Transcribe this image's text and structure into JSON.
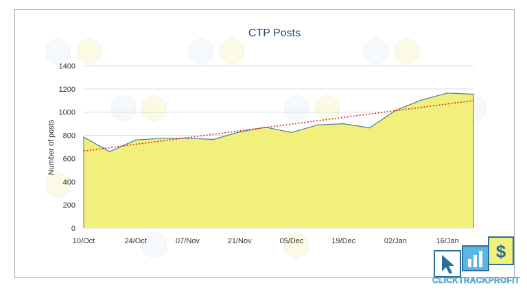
{
  "chart_data": {
    "type": "area",
    "title": "CTP Posts",
    "xlabel": "",
    "ylabel": "Number of posts",
    "ylim": [
      0,
      1400
    ],
    "yticks": [
      0,
      200,
      400,
      600,
      800,
      1000,
      1200,
      1400
    ],
    "x_tick_labels": [
      "10/Oct",
      "24/Oct",
      "07/Nov",
      "21/Nov",
      "05/Dec",
      "19/Dec",
      "02/Jan",
      "16/Jan"
    ],
    "x": [
      "10/Oct",
      "17/Oct",
      "24/Oct",
      "31/Oct",
      "07/Nov",
      "14/Nov",
      "21/Nov",
      "28/Nov",
      "05/Dec",
      "12/Dec",
      "19/Dec",
      "26/Dec",
      "02/Jan",
      "09/Jan",
      "16/Jan",
      "23/Jan"
    ],
    "series": [
      {
        "values": [
          785,
          660,
          760,
          775,
          775,
          765,
          830,
          870,
          825,
          890,
          900,
          865,
          1015,
          1105,
          1165,
          1155
        ]
      }
    ],
    "trendline": {
      "type": "linear",
      "start": 665,
      "end": 1100
    },
    "grid": true,
    "legend": "none",
    "colors": {
      "area_fill": "#f0f07a",
      "area_line": "#4a7a98",
      "trend": "#e02020",
      "grid": "#d9d9d9",
      "title": "#1f4e79"
    }
  },
  "brand": {
    "text": "CLICKTRACKPROFIT",
    "icons": [
      "cursor-icon",
      "bar-chart-icon",
      "dollar-icon"
    ],
    "dollar_symbol": "$"
  }
}
